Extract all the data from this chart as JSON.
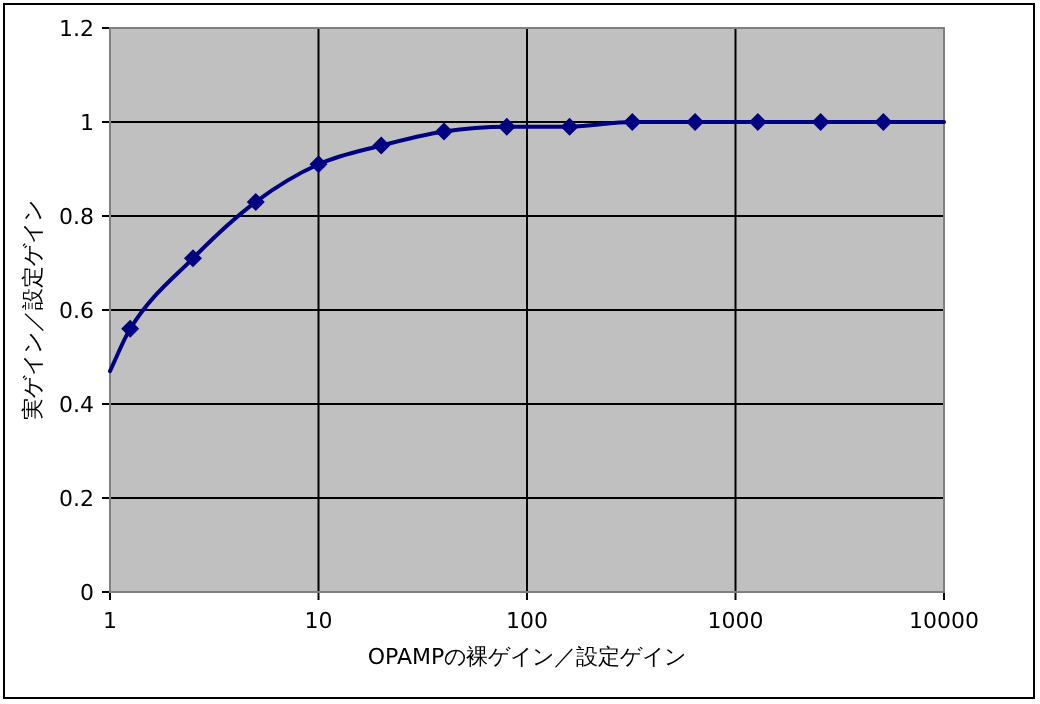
{
  "chart_data": {
    "type": "line",
    "xlabel": "OPAMPの裸ゲイン／設定ゲイン",
    "ylabel": "実ゲイン／設定ゲイン",
    "log": "x",
    "xlim": [
      1,
      10000
    ],
    "xticks": [
      1,
      10,
      100,
      1000,
      10000
    ],
    "ylim": [
      0,
      1.2
    ],
    "yticks": [
      0,
      0.2,
      0.4,
      0.6,
      0.8,
      1,
      1.2
    ],
    "grid": true,
    "series": [
      {
        "type": "line",
        "color": "#000080",
        "marker": "none",
        "x": [
          1,
          1.25,
          2.5,
          5,
          10,
          20,
          40,
          80,
          160,
          320,
          640,
          1280,
          2560,
          5120,
          10000
        ],
        "values": [
          0.47,
          0.56,
          0.71,
          0.83,
          0.91,
          0.95,
          0.98,
          0.99,
          0.99,
          1,
          1,
          1,
          1,
          1,
          1
        ]
      },
      {
        "type": "scatter",
        "color": "#000080",
        "marker": "diamond",
        "x": [
          1.25,
          2.5,
          5,
          10,
          20,
          40,
          80,
          160,
          320,
          640,
          1280,
          2560,
          5120
        ],
        "values": [
          0.56,
          0.71,
          0.83,
          0.91,
          0.95,
          0.98,
          0.99,
          0.99,
          1,
          1,
          1,
          1,
          1
        ]
      }
    ]
  }
}
